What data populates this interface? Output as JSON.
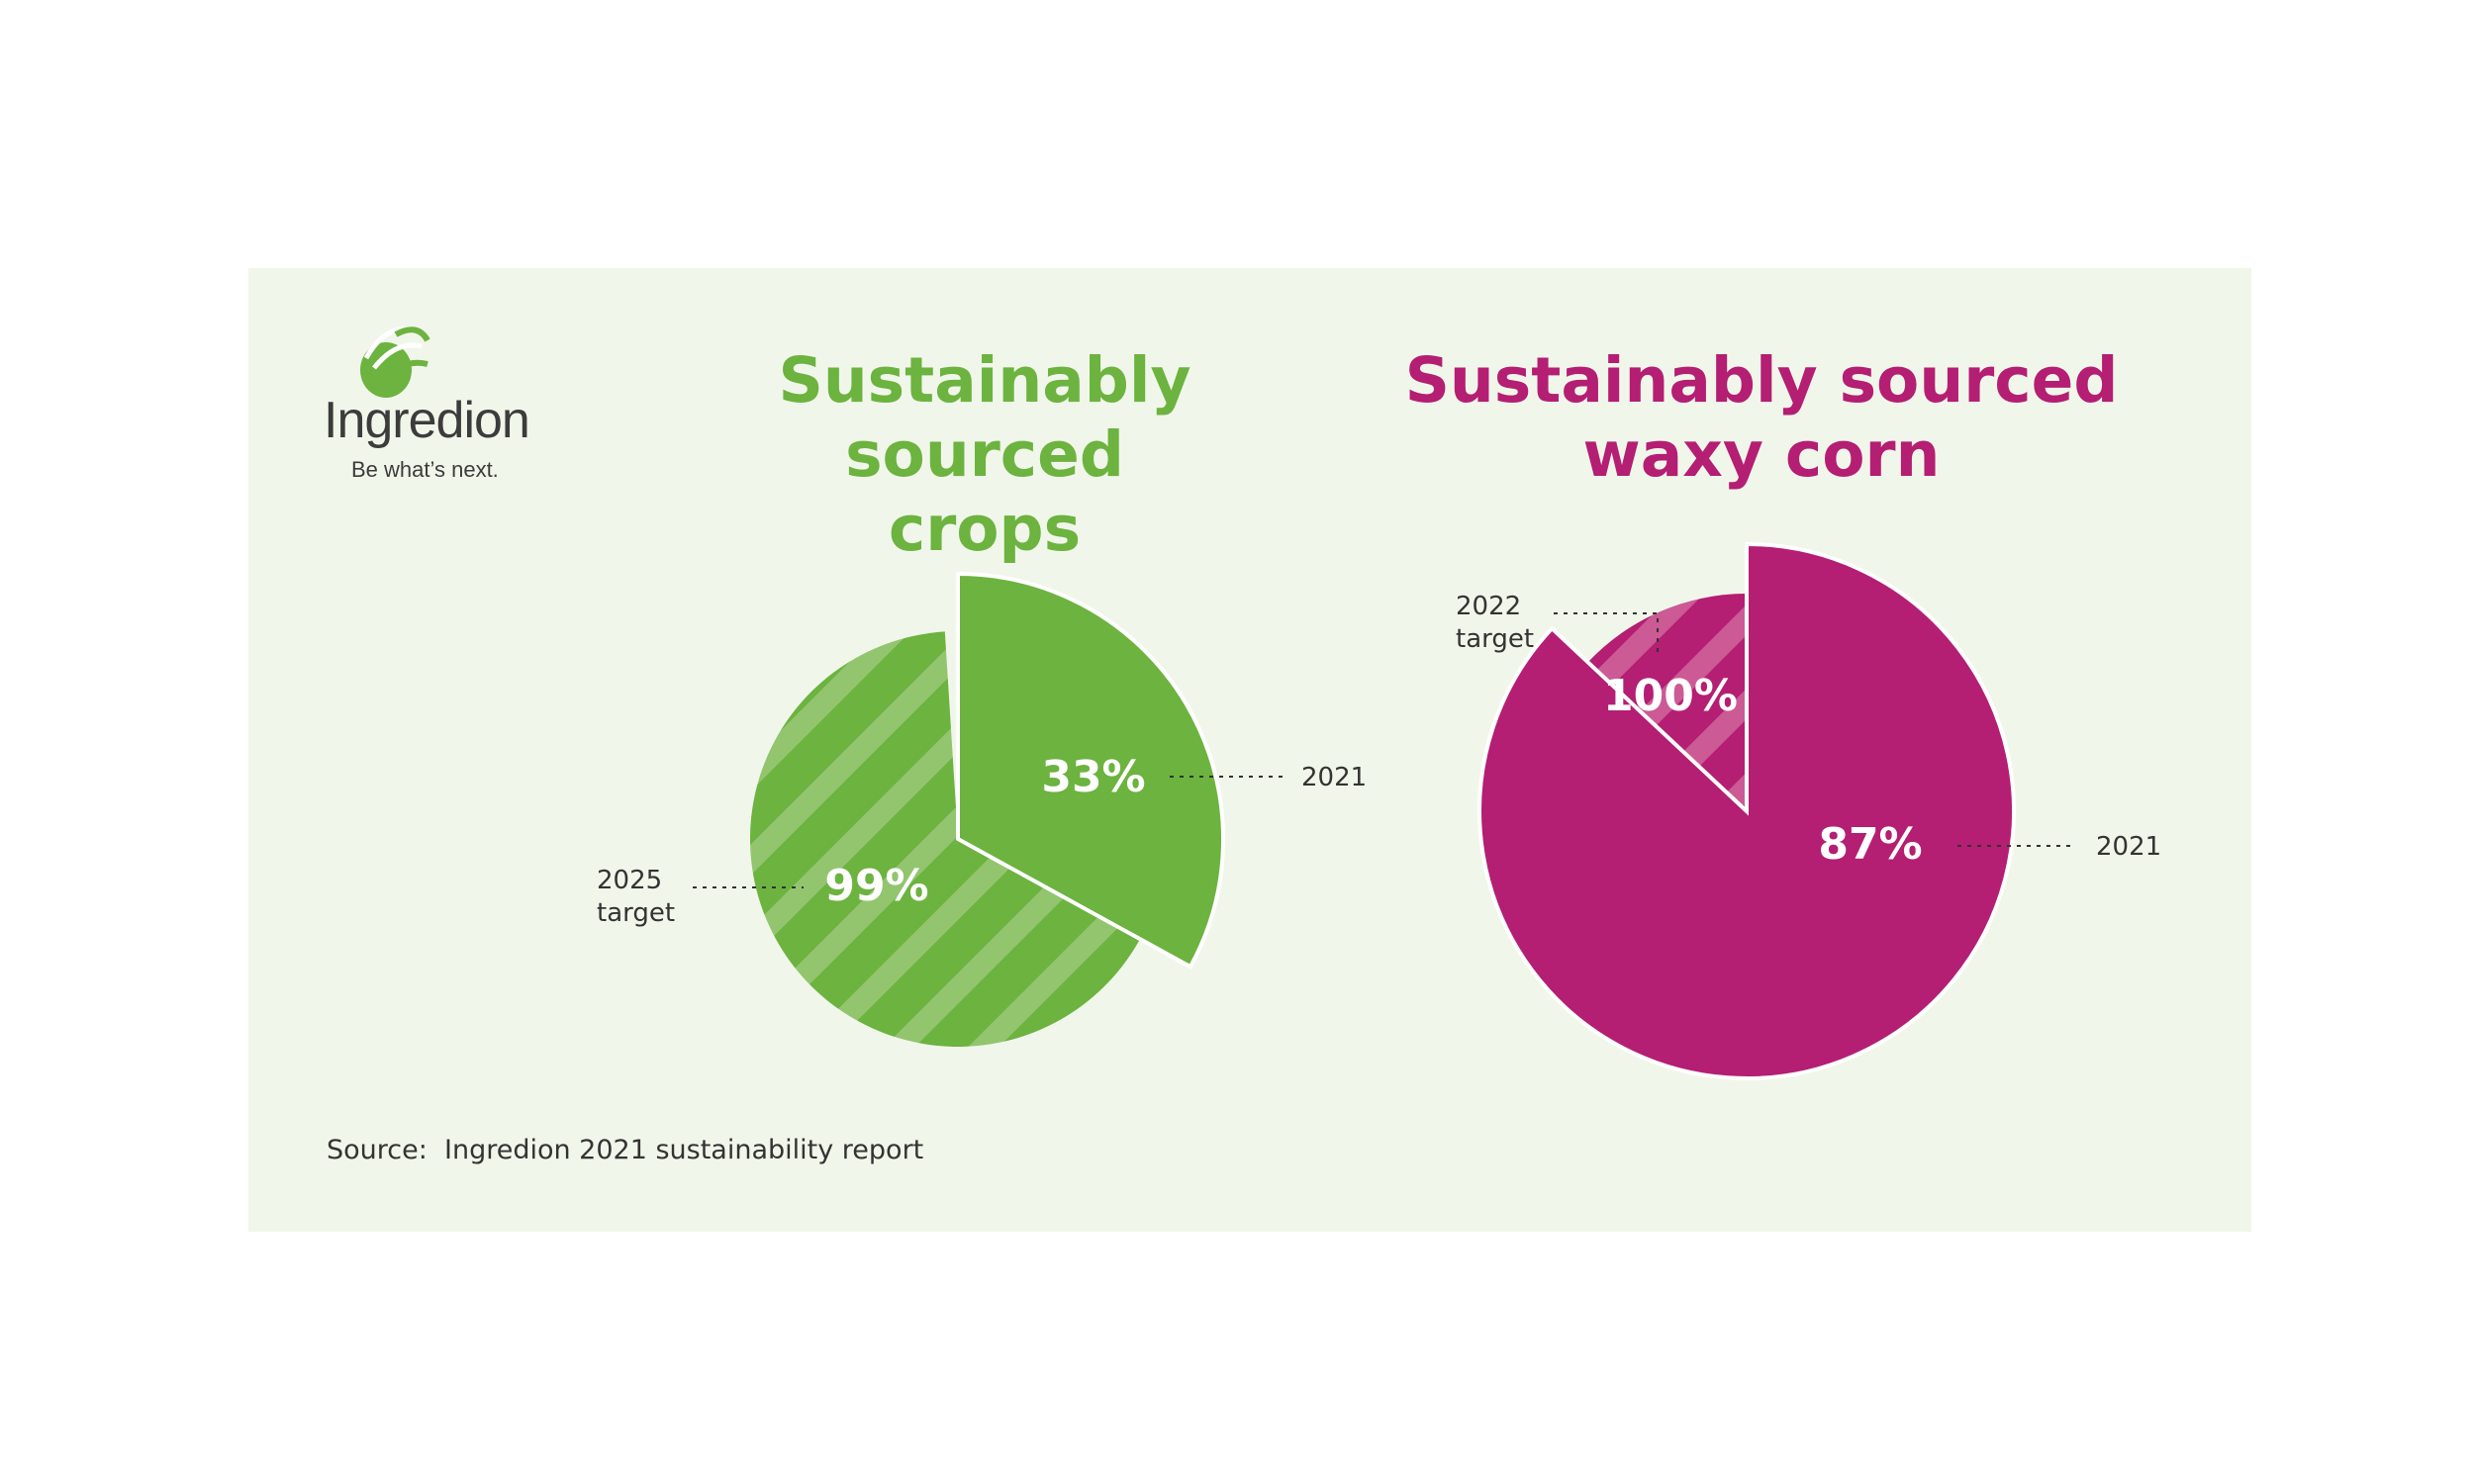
{
  "brand": {
    "name": "Ingredion",
    "tagline": "Be what’s next.",
    "colors": {
      "green": "#6cb33f",
      "green_light": "#8fc26c",
      "magenta": "#b41e73",
      "magenta_light": "#c9528f",
      "panel": "#f1f6ea"
    }
  },
  "source": "Source:  Ingredion 2021 sustainability report",
  "chart_data": [
    {
      "type": "pie",
      "title": "Sustainably sourced\ncrops",
      "slices": [
        {
          "label": "2021",
          "value": 33,
          "display": "33%",
          "color": "#6cb33f",
          "style": "solid"
        },
        {
          "label": "2025 target",
          "value": 99,
          "display": "99%",
          "color": "#6cb33f",
          "style": "hatched"
        }
      ]
    },
    {
      "type": "pie",
      "title": "Sustainably sourced\nwaxy corn",
      "slices": [
        {
          "label": "2021",
          "value": 87,
          "display": "87%",
          "color": "#b41e73",
          "style": "solid"
        },
        {
          "label": "2022 target",
          "value": 100,
          "display": "100%",
          "color": "#b41e73",
          "style": "hatched"
        }
      ]
    }
  ]
}
